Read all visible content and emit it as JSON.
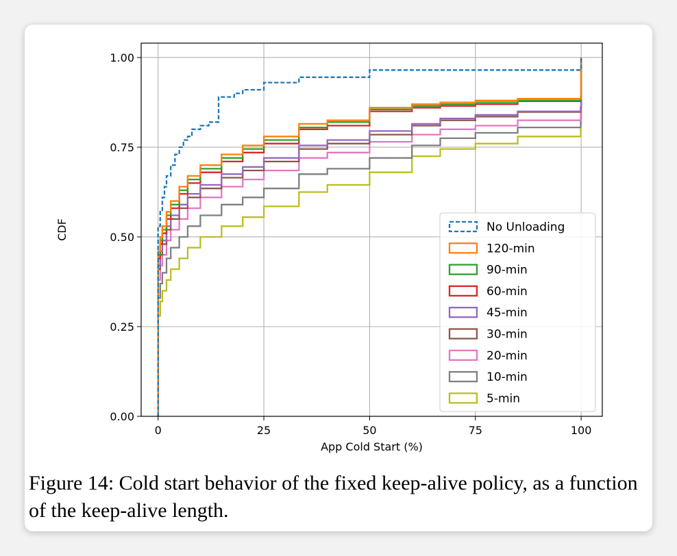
{
  "figure": {
    "caption": "Figure 14: Cold start behavior of the fixed keep-alive policy, as a function of the keep-alive length."
  },
  "chart_data": {
    "type": "line",
    "subtype": "step-cdf",
    "xlabel": "App Cold Start (%)",
    "ylabel": "CDF",
    "xlim": [
      -4,
      105
    ],
    "ylim": [
      0,
      1.04
    ],
    "xticks": [
      0,
      25,
      50,
      75,
      100
    ],
    "yticks": [
      0.0,
      0.25,
      0.5,
      0.75,
      1.0
    ],
    "xtick_labels": [
      "0",
      "25",
      "50",
      "75",
      "100"
    ],
    "ytick_labels": [
      "0.00",
      "0.25",
      "0.50",
      "0.75",
      "1.00"
    ],
    "grid": true,
    "legend_position": "lower-right",
    "series": [
      {
        "name": "No Unloading",
        "color": "#1f77b4",
        "dashed": true,
        "x": [
          0,
          0.2,
          0.5,
          1,
          1.5,
          2,
          3,
          4,
          5,
          6,
          7,
          8,
          10,
          12,
          14.3,
          16,
          18,
          20,
          25,
          33.3,
          50,
          100,
          100
        ],
        "y": [
          0,
          0.53,
          0.57,
          0.61,
          0.64,
          0.67,
          0.7,
          0.73,
          0.75,
          0.77,
          0.78,
          0.8,
          0.81,
          0.82,
          0.89,
          0.89,
          0.9,
          0.91,
          0.93,
          0.945,
          0.965,
          0.965,
          1.0
        ]
      },
      {
        "name": "120-min",
        "color": "#ff7f0e",
        "dashed": false,
        "x": [
          0,
          0.2,
          0.5,
          1,
          2,
          3,
          5,
          7,
          10,
          15,
          20,
          25,
          33.3,
          40,
          50,
          60,
          66.7,
          75,
          85,
          99.9,
          100
        ],
        "y": [
          0,
          0.46,
          0.5,
          0.53,
          0.57,
          0.6,
          0.64,
          0.67,
          0.7,
          0.73,
          0.755,
          0.78,
          0.815,
          0.825,
          0.86,
          0.87,
          0.875,
          0.88,
          0.885,
          0.89,
          1.0
        ]
      },
      {
        "name": "90-min",
        "color": "#2ca02c",
        "dashed": false,
        "x": [
          0,
          0.2,
          0.5,
          1,
          2,
          3,
          5,
          7,
          10,
          15,
          20,
          25,
          33.3,
          40,
          50,
          60,
          66.7,
          75,
          85,
          99.9,
          100
        ],
        "y": [
          0,
          0.45,
          0.49,
          0.52,
          0.56,
          0.59,
          0.63,
          0.66,
          0.69,
          0.72,
          0.745,
          0.77,
          0.805,
          0.82,
          0.855,
          0.865,
          0.87,
          0.875,
          0.88,
          0.885,
          1.0
        ]
      },
      {
        "name": "60-min",
        "color": "#d62728",
        "dashed": false,
        "x": [
          0,
          0.2,
          0.5,
          1,
          2,
          3,
          5,
          7,
          10,
          15,
          20,
          25,
          33.3,
          40,
          50,
          60,
          66.7,
          75,
          85,
          99.9,
          100
        ],
        "y": [
          0,
          0.44,
          0.48,
          0.51,
          0.55,
          0.58,
          0.62,
          0.65,
          0.68,
          0.71,
          0.735,
          0.76,
          0.8,
          0.81,
          0.85,
          0.86,
          0.865,
          0.87,
          0.878,
          0.885,
          1.0
        ]
      },
      {
        "name": "45-min",
        "color": "#9467bd",
        "dashed": false,
        "x": [
          0,
          0.2,
          0.5,
          1,
          2,
          3,
          5,
          7,
          10,
          15,
          20,
          25,
          33.3,
          40,
          50,
          60,
          66.7,
          75,
          85,
          99.9,
          100
        ],
        "y": [
          0,
          0.42,
          0.46,
          0.49,
          0.53,
          0.56,
          0.59,
          0.62,
          0.645,
          0.675,
          0.695,
          0.72,
          0.755,
          0.77,
          0.795,
          0.815,
          0.83,
          0.84,
          0.85,
          0.86,
          1.0
        ]
      },
      {
        "name": "30-min",
        "color": "#8c564b",
        "dashed": false,
        "x": [
          0,
          0.2,
          0.5,
          1,
          2,
          3,
          5,
          7,
          10,
          15,
          20,
          25,
          33.3,
          40,
          50,
          60,
          66.7,
          75,
          85,
          99.9,
          100
        ],
        "y": [
          0,
          0.41,
          0.45,
          0.48,
          0.52,
          0.55,
          0.58,
          0.61,
          0.635,
          0.665,
          0.685,
          0.71,
          0.745,
          0.76,
          0.785,
          0.81,
          0.825,
          0.835,
          0.848,
          0.862,
          1.0
        ]
      },
      {
        "name": "20-min",
        "color": "#e377c2",
        "dashed": false,
        "x": [
          0,
          0.2,
          0.5,
          1,
          2,
          3,
          5,
          7,
          10,
          15,
          20,
          25,
          33.3,
          40,
          50,
          60,
          66.7,
          75,
          85,
          99.9,
          100
        ],
        "y": [
          0,
          0.38,
          0.42,
          0.45,
          0.49,
          0.52,
          0.55,
          0.58,
          0.61,
          0.64,
          0.66,
          0.685,
          0.72,
          0.735,
          0.765,
          0.785,
          0.8,
          0.81,
          0.825,
          0.845,
          1.0
        ]
      },
      {
        "name": "10-min",
        "color": "#7f7f7f",
        "dashed": false,
        "x": [
          0,
          0.2,
          0.5,
          1,
          2,
          3,
          5,
          7,
          10,
          15,
          20,
          25,
          33.3,
          40,
          50,
          60,
          66.7,
          75,
          85,
          99.9,
          100
        ],
        "y": [
          0,
          0.33,
          0.37,
          0.4,
          0.44,
          0.47,
          0.5,
          0.53,
          0.56,
          0.59,
          0.61,
          0.635,
          0.675,
          0.69,
          0.72,
          0.755,
          0.775,
          0.79,
          0.805,
          0.83,
          1.0
        ]
      },
      {
        "name": "5-min",
        "color": "#bcbd22",
        "dashed": false,
        "x": [
          0,
          0.2,
          0.5,
          1,
          2,
          3,
          5,
          7,
          10,
          15,
          20,
          25,
          33.3,
          40,
          50,
          60,
          66.7,
          75,
          85,
          99.9,
          100
        ],
        "y": [
          0,
          0.28,
          0.32,
          0.35,
          0.38,
          0.41,
          0.44,
          0.47,
          0.5,
          0.53,
          0.555,
          0.585,
          0.625,
          0.645,
          0.68,
          0.725,
          0.745,
          0.76,
          0.78,
          0.815,
          1.0
        ]
      }
    ]
  }
}
